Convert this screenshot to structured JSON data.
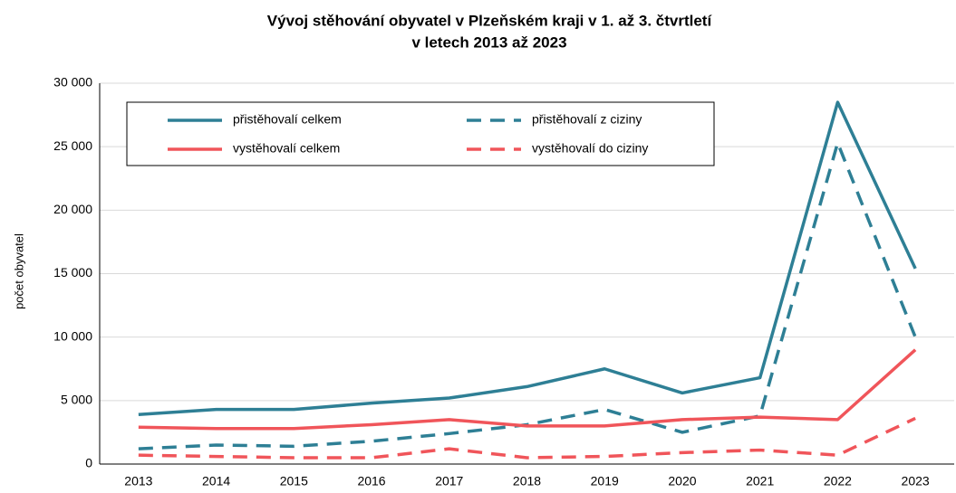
{
  "chart_data": {
    "type": "line",
    "title": [
      "Vývoj stěhování obyvatel v Plzeňském kraji v 1. až 3. čtvrtletí",
      "v letech 2013  až 2023"
    ],
    "ylabel": "počet obyvatel",
    "categories": [
      "2013",
      "2014",
      "2015",
      "2016",
      "2017",
      "2018",
      "2019",
      "2020",
      "2021",
      "2022",
      "2023"
    ],
    "series": [
      {
        "name": "přistěhovalí celkem",
        "color": "#2e7f95",
        "dashed": false,
        "values": [
          3900,
          4300,
          4300,
          4800,
          5200,
          6100,
          7500,
          5600,
          6800,
          28500,
          15400
        ]
      },
      {
        "name": "přistěhovalí z ciziny",
        "color": "#2e7f95",
        "dashed": true,
        "values": [
          1200,
          1500,
          1400,
          1800,
          2400,
          3100,
          4300,
          2500,
          3800,
          25300,
          10000
        ]
      },
      {
        "name": "vystěhovalí celkem",
        "color": "#f0555a",
        "dashed": false,
        "values": [
          2900,
          2800,
          2800,
          3100,
          3500,
          3000,
          3000,
          3500,
          3700,
          3500,
          9000
        ]
      },
      {
        "name": "vystěhovalí do ciziny",
        "color": "#f0555a",
        "dashed": true,
        "values": [
          700,
          600,
          500,
          500,
          1200,
          500,
          600,
          900,
          1100,
          700,
          3600
        ]
      }
    ],
    "ylim": [
      0,
      30000
    ],
    "yticks": [
      {
        "value": 0,
        "label": "0"
      },
      {
        "value": 5000,
        "label": "5 000"
      },
      {
        "value": 10000,
        "label": "10 000"
      },
      {
        "value": 15000,
        "label": "15 000"
      },
      {
        "value": 20000,
        "label": "20 000"
      },
      {
        "value": 25000,
        "label": "25 000"
      },
      {
        "value": 30000,
        "label": "30 000"
      }
    ],
    "grid": true,
    "legend": "top-left"
  }
}
